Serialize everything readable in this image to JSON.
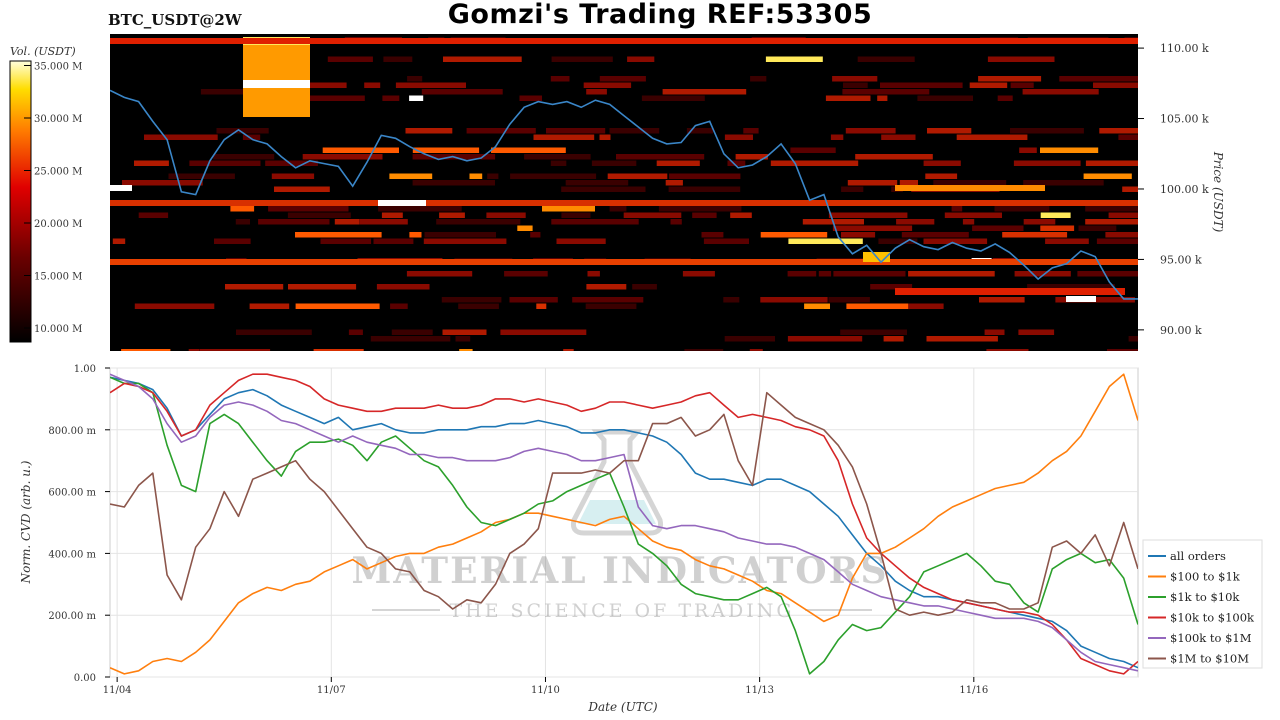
{
  "title": "Gomzi's Trading REF:53305",
  "symbol": "BTC_USDT@2W",
  "watermark": {
    "line1": "MATERIAL INDICATORS",
    "line2": "THE SCIENCE OF TRADING"
  },
  "colors": {
    "heatmap_bg": "#000000",
    "price_line": "#3a86c8",
    "all_orders": "#1f77b4",
    "c100_1k": "#ff7f0e",
    "c1k_10k": "#2ca02c",
    "c10k_100k": "#d62728",
    "c100k_1m": "#9467bd",
    "c1m_10m": "#8c564b"
  },
  "chart_data": [
    {
      "type": "heatmap",
      "ylabel": "Price (USDT)",
      "colorbar_label": "Vol. (USDT)",
      "colorbar_ticks": [
        "10.000 M",
        "15.000 M",
        "20.000 M",
        "25.000 M",
        "30.000 M",
        "35.000 M"
      ],
      "ylim": [
        88.5,
        111
      ],
      "y_ticks": [
        {
          "value": 90,
          "label": "90.00 k"
        },
        {
          "value": 95,
          "label": "95.00 k"
        },
        {
          "value": 100,
          "label": "100.00 k"
        },
        {
          "value": 105,
          "label": "105.00 k"
        },
        {
          "value": 110,
          "label": "110.00 k"
        }
      ],
      "xlim": [
        3.9,
        18.3
      ],
      "price_series": {
        "name": "price",
        "x": [
          3.9,
          4.1,
          4.3,
          4.5,
          4.7,
          4.9,
          5.1,
          5.3,
          5.5,
          5.7,
          5.9,
          6.1,
          6.3,
          6.5,
          6.7,
          6.9,
          7.1,
          7.3,
          7.5,
          7.7,
          7.9,
          8.1,
          8.3,
          8.5,
          8.7,
          8.9,
          9.1,
          9.3,
          9.5,
          9.7,
          9.9,
          10.1,
          10.3,
          10.5,
          10.7,
          10.9,
          11.1,
          11.3,
          11.5,
          11.7,
          11.9,
          12.1,
          12.3,
          12.5,
          12.7,
          12.9,
          13.1,
          13.3,
          13.5,
          13.7,
          13.9,
          14.1,
          14.3,
          14.5,
          14.7,
          14.9,
          15.1,
          15.3,
          15.5,
          15.7,
          15.9,
          16.1,
          16.3,
          16.5,
          16.7,
          16.9,
          17.1,
          17.3,
          17.5,
          17.7,
          17.9,
          18.1,
          18.3
        ],
        "y": [
          107.0,
          106.5,
          106.2,
          104.8,
          103.5,
          99.8,
          99.6,
          102.0,
          103.5,
          104.2,
          103.5,
          103.2,
          102.3,
          101.5,
          102.0,
          101.8,
          101.6,
          100.2,
          101.9,
          103.8,
          103.6,
          103.0,
          102.5,
          102.1,
          102.3,
          102.0,
          102.2,
          103.0,
          104.6,
          105.8,
          106.2,
          106.0,
          106.2,
          105.8,
          106.3,
          106.0,
          105.2,
          104.4,
          103.6,
          103.2,
          103.3,
          104.5,
          104.8,
          102.5,
          101.5,
          101.7,
          102.3,
          103.2,
          101.8,
          99.2,
          99.6,
          96.6,
          95.4,
          96.0,
          94.8,
          95.8,
          96.4,
          95.9,
          95.7,
          96.2,
          95.8,
          95.6,
          96.1,
          95.5,
          94.6,
          93.6,
          94.4,
          94.7,
          95.6,
          95.2,
          93.4,
          92.2,
          92.2
        ]
      }
    },
    {
      "type": "line",
      "xlabel": "Date (UTC)",
      "ylabel": "Norm. CVD (arb. u.)",
      "xlim": [
        3.9,
        18.3
      ],
      "ylim": [
        0,
        1
      ],
      "x_ticks": [
        {
          "value": 4,
          "label": "11/04"
        },
        {
          "value": 7,
          "label": "11/07"
        },
        {
          "value": 10,
          "label": "11/10"
        },
        {
          "value": 13,
          "label": "11/13"
        },
        {
          "value": 16,
          "label": "11/16"
        }
      ],
      "y_ticks": [
        {
          "value": 0,
          "label": "0.00"
        },
        {
          "value": 0.2,
          "label": "200.00 m"
        },
        {
          "value": 0.4,
          "label": "400.00 m"
        },
        {
          "value": 0.6,
          "label": "600.00 m"
        },
        {
          "value": 0.8,
          "label": "800.00 m"
        },
        {
          "value": 1.0,
          "label": "1.00"
        }
      ],
      "legend_position": "lower-right-outside",
      "x": [
        3.9,
        4.1,
        4.3,
        4.5,
        4.7,
        4.9,
        5.1,
        5.3,
        5.5,
        5.7,
        5.9,
        6.1,
        6.3,
        6.5,
        6.7,
        6.9,
        7.1,
        7.3,
        7.5,
        7.7,
        7.9,
        8.1,
        8.3,
        8.5,
        8.7,
        8.9,
        9.1,
        9.3,
        9.5,
        9.7,
        9.9,
        10.1,
        10.3,
        10.5,
        10.7,
        10.9,
        11.1,
        11.3,
        11.5,
        11.7,
        11.9,
        12.1,
        12.3,
        12.5,
        12.7,
        12.9,
        13.1,
        13.3,
        13.5,
        13.7,
        13.9,
        14.1,
        14.3,
        14.5,
        14.7,
        14.9,
        15.1,
        15.3,
        15.5,
        15.7,
        15.9,
        16.1,
        16.3,
        16.5,
        16.7,
        16.9,
        17.1,
        17.3,
        17.5,
        17.7,
        17.9,
        18.1,
        18.3
      ],
      "series": [
        {
          "name": "all orders",
          "color_key": "all_orders",
          "values": [
            0.97,
            0.96,
            0.95,
            0.93,
            0.87,
            0.78,
            0.8,
            0.85,
            0.9,
            0.92,
            0.93,
            0.91,
            0.88,
            0.86,
            0.84,
            0.82,
            0.84,
            0.8,
            0.81,
            0.82,
            0.8,
            0.79,
            0.79,
            0.8,
            0.8,
            0.8,
            0.81,
            0.81,
            0.82,
            0.82,
            0.83,
            0.82,
            0.81,
            0.79,
            0.79,
            0.8,
            0.8,
            0.79,
            0.78,
            0.76,
            0.72,
            0.66,
            0.64,
            0.64,
            0.63,
            0.62,
            0.64,
            0.64,
            0.62,
            0.6,
            0.56,
            0.52,
            0.46,
            0.4,
            0.36,
            0.31,
            0.28,
            0.26,
            0.26,
            0.25,
            0.24,
            0.23,
            0.22,
            0.21,
            0.2,
            0.19,
            0.18,
            0.15,
            0.1,
            0.08,
            0.06,
            0.05,
            0.03
          ]
        },
        {
          "name": "$100 to $1k",
          "color_key": "c100_1k",
          "values": [
            0.03,
            0.01,
            0.02,
            0.05,
            0.06,
            0.05,
            0.08,
            0.12,
            0.18,
            0.24,
            0.27,
            0.29,
            0.28,
            0.3,
            0.31,
            0.34,
            0.36,
            0.38,
            0.35,
            0.37,
            0.39,
            0.4,
            0.4,
            0.42,
            0.43,
            0.45,
            0.47,
            0.5,
            0.51,
            0.53,
            0.53,
            0.52,
            0.51,
            0.5,
            0.49,
            0.51,
            0.52,
            0.48,
            0.44,
            0.42,
            0.41,
            0.38,
            0.36,
            0.35,
            0.33,
            0.31,
            0.28,
            0.27,
            0.24,
            0.21,
            0.18,
            0.2,
            0.32,
            0.4,
            0.4,
            0.42,
            0.45,
            0.48,
            0.52,
            0.55,
            0.57,
            0.59,
            0.61,
            0.62,
            0.63,
            0.66,
            0.7,
            0.73,
            0.78,
            0.86,
            0.94,
            0.98,
            0.83
          ]
        },
        {
          "name": "$1k to $10k",
          "color_key": "c1k_10k",
          "values": [
            0.97,
            0.95,
            0.95,
            0.92,
            0.75,
            0.62,
            0.6,
            0.82,
            0.85,
            0.82,
            0.76,
            0.7,
            0.65,
            0.73,
            0.76,
            0.76,
            0.77,
            0.75,
            0.7,
            0.76,
            0.78,
            0.74,
            0.7,
            0.68,
            0.62,
            0.55,
            0.5,
            0.49,
            0.51,
            0.53,
            0.56,
            0.57,
            0.6,
            0.62,
            0.64,
            0.66,
            0.55,
            0.43,
            0.4,
            0.36,
            0.3,
            0.27,
            0.26,
            0.25,
            0.25,
            0.27,
            0.29,
            0.26,
            0.15,
            0.01,
            0.05,
            0.12,
            0.17,
            0.15,
            0.16,
            0.21,
            0.26,
            0.34,
            0.36,
            0.38,
            0.4,
            0.36,
            0.31,
            0.3,
            0.24,
            0.21,
            0.35,
            0.38,
            0.4,
            0.37,
            0.38,
            0.32,
            0.17
          ]
        },
        {
          "name": "$10k to $100k",
          "color_key": "c10k_100k",
          "values": [
            0.92,
            0.95,
            0.94,
            0.92,
            0.86,
            0.78,
            0.8,
            0.88,
            0.92,
            0.96,
            0.98,
            0.98,
            0.97,
            0.96,
            0.94,
            0.9,
            0.88,
            0.87,
            0.86,
            0.86,
            0.87,
            0.87,
            0.87,
            0.88,
            0.87,
            0.87,
            0.88,
            0.9,
            0.9,
            0.89,
            0.9,
            0.89,
            0.88,
            0.86,
            0.87,
            0.89,
            0.89,
            0.88,
            0.87,
            0.88,
            0.89,
            0.91,
            0.92,
            0.88,
            0.84,
            0.85,
            0.84,
            0.83,
            0.81,
            0.8,
            0.78,
            0.7,
            0.56,
            0.45,
            0.4,
            0.36,
            0.32,
            0.29,
            0.27,
            0.25,
            0.24,
            0.23,
            0.22,
            0.21,
            0.21,
            0.2,
            0.17,
            0.12,
            0.06,
            0.04,
            0.02,
            0.01,
            0.05
          ]
        },
        {
          "name": "$100k to $1M",
          "color_key": "c100k_1m",
          "values": [
            0.98,
            0.96,
            0.94,
            0.9,
            0.82,
            0.76,
            0.78,
            0.84,
            0.88,
            0.89,
            0.88,
            0.86,
            0.83,
            0.82,
            0.8,
            0.78,
            0.76,
            0.78,
            0.76,
            0.75,
            0.74,
            0.72,
            0.72,
            0.71,
            0.71,
            0.7,
            0.7,
            0.7,
            0.71,
            0.73,
            0.74,
            0.73,
            0.72,
            0.7,
            0.7,
            0.71,
            0.72,
            0.55,
            0.49,
            0.48,
            0.49,
            0.49,
            0.48,
            0.47,
            0.45,
            0.44,
            0.43,
            0.43,
            0.42,
            0.4,
            0.38,
            0.34,
            0.3,
            0.28,
            0.26,
            0.25,
            0.24,
            0.23,
            0.23,
            0.22,
            0.21,
            0.2,
            0.19,
            0.19,
            0.19,
            0.18,
            0.16,
            0.12,
            0.08,
            0.05,
            0.04,
            0.03,
            0.02
          ]
        },
        {
          "name": "$1M to $10M",
          "color_key": "c1m_10m",
          "values": [
            0.56,
            0.55,
            0.62,
            0.66,
            0.33,
            0.25,
            0.42,
            0.48,
            0.6,
            0.52,
            0.64,
            0.66,
            0.68,
            0.7,
            0.64,
            0.6,
            0.54,
            0.48,
            0.42,
            0.4,
            0.35,
            0.34,
            0.28,
            0.26,
            0.22,
            0.25,
            0.24,
            0.3,
            0.4,
            0.43,
            0.48,
            0.66,
            0.66,
            0.66,
            0.67,
            0.66,
            0.7,
            0.7,
            0.82,
            0.82,
            0.84,
            0.78,
            0.8,
            0.85,
            0.7,
            0.62,
            0.92,
            0.88,
            0.84,
            0.82,
            0.8,
            0.75,
            0.68,
            0.56,
            0.4,
            0.22,
            0.2,
            0.21,
            0.2,
            0.21,
            0.25,
            0.24,
            0.24,
            0.22,
            0.22,
            0.24,
            0.42,
            0.44,
            0.4,
            0.46,
            0.36,
            0.5,
            0.35
          ]
        }
      ]
    }
  ]
}
